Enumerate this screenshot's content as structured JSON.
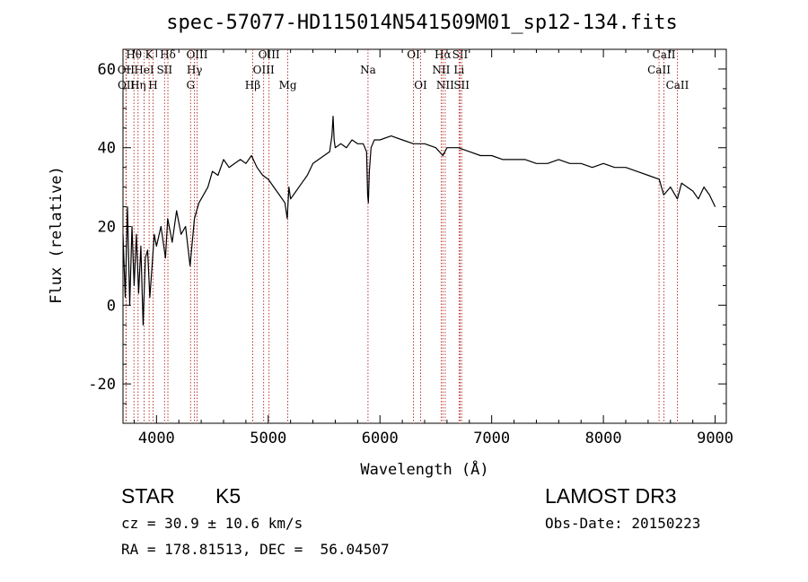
{
  "chart_data": {
    "type": "line",
    "title": "spec-57077-HD115014N541509M01_sp12-134.fits",
    "xlabel": "Wavelength (Å)",
    "ylabel": "Flux (relative)",
    "xlim": [
      3700,
      9100
    ],
    "ylim": [
      -30,
      65
    ],
    "x_ticks": [
      4000,
      5000,
      6000,
      7000,
      8000,
      9000
    ],
    "y_ticks": [
      -20,
      0,
      20,
      40,
      60
    ],
    "grid": false,
    "series": [
      {
        "name": "flux",
        "x": [
          3700,
          3720,
          3740,
          3760,
          3780,
          3800,
          3820,
          3840,
          3860,
          3880,
          3900,
          3920,
          3940,
          3960,
          3980,
          4000,
          4040,
          4080,
          4100,
          4140,
          4180,
          4220,
          4260,
          4300,
          4340,
          4380,
          4420,
          4460,
          4500,
          4550,
          4600,
          4650,
          4700,
          4750,
          4800,
          4850,
          4900,
          4950,
          5000,
          5050,
          5100,
          5150,
          5170,
          5185,
          5200,
          5250,
          5300,
          5350,
          5400,
          5450,
          5500,
          5550,
          5570,
          5580,
          5590,
          5600,
          5650,
          5700,
          5750,
          5800,
          5850,
          5880,
          5890,
          5896,
          5905,
          5920,
          5950,
          6000,
          6100,
          6200,
          6300,
          6400,
          6500,
          6563,
          6600,
          6700,
          6800,
          6900,
          7000,
          7100,
          7200,
          7300,
          7400,
          7500,
          7600,
          7700,
          7800,
          7900,
          8000,
          8100,
          8200,
          8300,
          8400,
          8500,
          8540,
          8600,
          8662,
          8700,
          8750,
          8800,
          8850,
          8900,
          8950,
          9000
        ],
        "y": [
          18,
          2,
          25,
          0,
          20,
          5,
          18,
          3,
          15,
          -5,
          12,
          14,
          2,
          10,
          18,
          15,
          20,
          12,
          22,
          16,
          24,
          18,
          20,
          10,
          22,
          26,
          28,
          30,
          34,
          33,
          37,
          35,
          36,
          37,
          36,
          38,
          35,
          33,
          32,
          30,
          28,
          26,
          22,
          30,
          27,
          29,
          31,
          33,
          36,
          37,
          38,
          39,
          43,
          48,
          42,
          40,
          41,
          40,
          42,
          41,
          41,
          39,
          28,
          26,
          34,
          40,
          42,
          42,
          43,
          42,
          41,
          41,
          40,
          38,
          40,
          40,
          39,
          38,
          38,
          37,
          37,
          37,
          36,
          36,
          37,
          36,
          36,
          35,
          36,
          35,
          35,
          34,
          33,
          32,
          28,
          30,
          27,
          31,
          30,
          29,
          27,
          30,
          28,
          25
        ]
      }
    ],
    "line_markers": [
      {
        "label": "Hθ",
        "x": 3798,
        "row": 1
      },
      {
        "label": "OII",
        "x": 3727,
        "row": 2
      },
      {
        "label": "OII",
        "x": 3729,
        "row": 3
      },
      {
        "label": "Hη",
        "x": 3835,
        "row": 3
      },
      {
        "label": "K",
        "x": 3934,
        "row": 1
      },
      {
        "label": "HeI",
        "x": 3889,
        "row": 2
      },
      {
        "label": "H",
        "x": 3969,
        "row": 3
      },
      {
        "label": "Hδ",
        "x": 4102,
        "row": 1
      },
      {
        "label": "SII",
        "x": 4072,
        "row": 2
      },
      {
        "label": "OIII",
        "x": 4363,
        "row": 1
      },
      {
        "label": "Hγ",
        "x": 4340,
        "row": 2
      },
      {
        "label": "G",
        "x": 4305,
        "row": 3
      },
      {
        "label": "OIII",
        "x": 5007,
        "row": 1
      },
      {
        "label": "OIII",
        "x": 4959,
        "row": 2
      },
      {
        "label": "Hβ",
        "x": 4861,
        "row": 3
      },
      {
        "label": "Mg",
        "x": 5175,
        "row": 3
      },
      {
        "label": "Na",
        "x": 5893,
        "row": 2
      },
      {
        "label": "OI",
        "x": 6300,
        "row": 1
      },
      {
        "label": "OI",
        "x": 6364,
        "row": 3
      },
      {
        "label": "Hα",
        "x": 6563,
        "row": 1
      },
      {
        "label": "SII",
        "x": 6717,
        "row": 1
      },
      {
        "label": "NII",
        "x": 6548,
        "row": 2
      },
      {
        "label": "Li",
        "x": 6708,
        "row": 2
      },
      {
        "label": "NII",
        "x": 6584,
        "row": 3
      },
      {
        "label": "SII",
        "x": 6731,
        "row": 3
      },
      {
        "label": "CaII",
        "x": 8542,
        "row": 1
      },
      {
        "label": "CaII",
        "x": 8498,
        "row": 2
      },
      {
        "label": "CaII",
        "x": 8662,
        "row": 3
      }
    ]
  },
  "info": {
    "object_class": "STAR",
    "subclass": "K5",
    "survey": "LAMOST DR3",
    "redshift": "cz = 30.9 ± 10.6 km/s",
    "obs_date": "Obs-Date: 20150223",
    "coords": "RA = 178.81513, DEC =  56.04507"
  },
  "colors": {
    "spectrum": "#000000",
    "marker_line": "#b22222",
    "axes": "#000000"
  }
}
